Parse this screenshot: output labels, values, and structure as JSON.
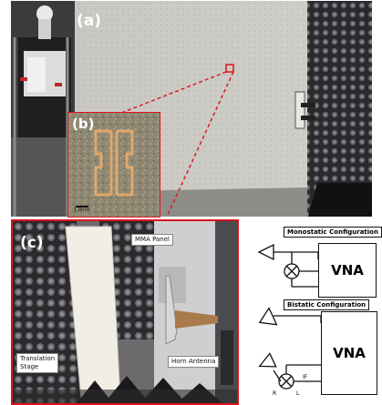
{
  "panel_a": {
    "label": "(a)"
  },
  "panel_b": {
    "label": "(b)",
    "scale_text": "1.0mm"
  },
  "panel_c": {
    "label": "(c)",
    "caption_mma": "MMA Panel",
    "caption_stage": "Translation\nStage",
    "caption_horn": "Horn Antenna"
  },
  "diagram": {
    "monostatic_title": "Monostatic Configuration",
    "bistatic_title": "Bistatic Configuration",
    "vna_label_1": "VNA",
    "vna_label_2": "VNA",
    "port_if": "IF",
    "port_r": "R",
    "port_l": "L"
  },
  "colors": {
    "highlight_red": "#d9141b",
    "gold_trace": "#e0a86a"
  }
}
